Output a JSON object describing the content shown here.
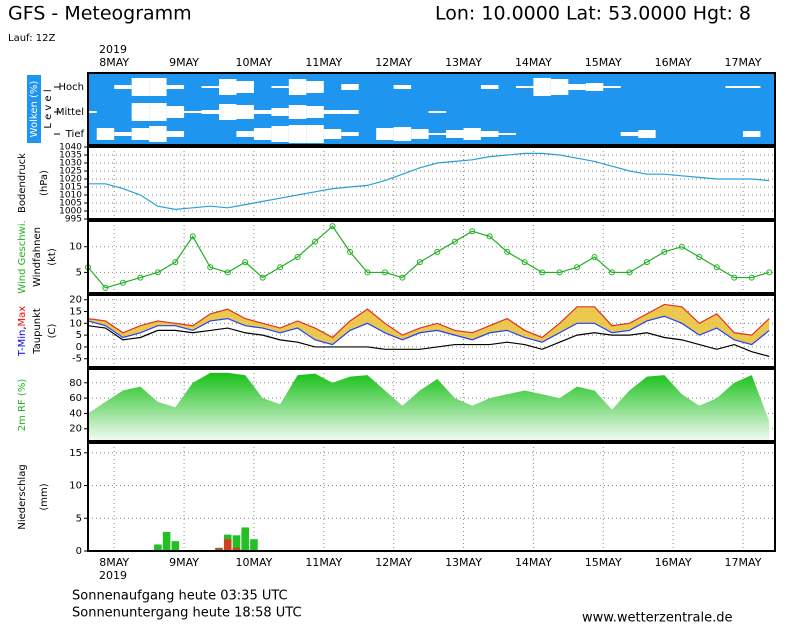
{
  "header": {
    "title": "GFS - Meteogramm",
    "location": "Lon: 10.0000 Lat: 53.0000 Hgt: 8",
    "run": "Lauf: 12Z"
  },
  "time": {
    "year": "2019",
    "xlim": [
      0,
      236
    ],
    "xticks": [
      {
        "value": 9,
        "label": "8MAY"
      },
      {
        "value": 33,
        "label": "9MAY"
      },
      {
        "value": 57,
        "label": "10MAY"
      },
      {
        "value": 81,
        "label": "11MAY"
      },
      {
        "value": 105,
        "label": "12MAY"
      },
      {
        "value": 129,
        "label": "13MAY"
      },
      {
        "value": 153,
        "label": "14MAY"
      },
      {
        "value": 177,
        "label": "15MAY"
      },
      {
        "value": 201,
        "label": "16MAY"
      },
      {
        "value": 225,
        "label": "17MAY"
      }
    ],
    "x": [
      0,
      6,
      12,
      18,
      24,
      30,
      36,
      42,
      48,
      54,
      60,
      66,
      72,
      78,
      84,
      90,
      96,
      102,
      108,
      114,
      120,
      126,
      132,
      138,
      144,
      150,
      156,
      162,
      168,
      174,
      180,
      186,
      192,
      198,
      204,
      210,
      216,
      222,
      228,
      234
    ]
  },
  "chart_data": [
    {
      "type": "cloud",
      "ylabel": [
        [
          {
            "text": "Wolken (%)",
            "color": "#ffffff"
          }
        ],
        [
          {
            "text": "L e v e l",
            "color": "#000000"
          }
        ]
      ],
      "background": "#1e96f0",
      "series": [
        {
          "name": "Hoch",
          "color": "#ffffff",
          "values": [
            0,
            0,
            20,
            90,
            90,
            20,
            0,
            10,
            80,
            60,
            0,
            10,
            80,
            60,
            0,
            30,
            0,
            0,
            20,
            0,
            0,
            0,
            0,
            20,
            0,
            10,
            90,
            80,
            30,
            40,
            10,
            0,
            0,
            0,
            0,
            0,
            0,
            10,
            10,
            0
          ]
        },
        {
          "name": "Mittel",
          "color": "#ffffff",
          "values": [
            10,
            0,
            0,
            90,
            90,
            60,
            10,
            20,
            80,
            70,
            20,
            40,
            70,
            60,
            20,
            20,
            0,
            0,
            0,
            0,
            10,
            0,
            0,
            0,
            0,
            0,
            0,
            0,
            0,
            0,
            0,
            0,
            0,
            0,
            0,
            0,
            0,
            0,
            0,
            0
          ]
        },
        {
          "name": "Tief",
          "color": "#ffffff",
          "values": [
            0,
            60,
            20,
            60,
            80,
            30,
            0,
            0,
            0,
            30,
            60,
            80,
            90,
            90,
            50,
            20,
            0,
            60,
            70,
            50,
            10,
            40,
            60,
            30,
            10,
            0,
            0,
            0,
            0,
            0,
            0,
            20,
            40,
            0,
            0,
            0,
            0,
            0,
            30,
            0
          ]
        }
      ]
    },
    {
      "type": "line",
      "ylabel": [
        [
          {
            "text": "Bodendruck",
            "color": "#000000"
          }
        ],
        [
          {
            "text": "(hPa)",
            "color": "#000000"
          }
        ]
      ],
      "ylim": [
        995,
        1040
      ],
      "yticks": [
        995,
        1000,
        1005,
        1010,
        1015,
        1020,
        1025,
        1030,
        1035,
        1040
      ],
      "series": [
        {
          "color": "#2a9fd6",
          "values": [
            1017,
            1017,
            1014,
            1010,
            1003,
            1001,
            1002,
            1003,
            1002,
            1004,
            1006,
            1008,
            1010,
            1012,
            1014,
            1015,
            1016,
            1019,
            1023,
            1027,
            1030,
            1031,
            1032,
            1034,
            1035,
            1036,
            1036,
            1035,
            1033,
            1031,
            1028,
            1025,
            1023,
            1023,
            1022,
            1021,
            1020,
            1020,
            1020,
            1019
          ]
        }
      ]
    },
    {
      "type": "line",
      "markers": true,
      "ylabel": [
        [
          {
            "text": "Wind Geschwi.",
            "color": "#22b022"
          }
        ],
        [
          {
            "text": "Windfahnen",
            "color": "#000000"
          }
        ],
        [
          {
            "text": "(kt)",
            "color": "#000000"
          }
        ]
      ],
      "ylim": [
        1,
        15
      ],
      "yticks": [
        5,
        10
      ],
      "series": [
        {
          "color": "#22b022",
          "values": [
            6,
            2,
            3,
            4,
            5,
            7,
            12,
            6,
            5,
            7,
            4,
            6,
            8,
            11,
            14,
            9,
            5,
            5,
            4,
            7,
            9,
            11,
            13,
            12,
            9,
            7,
            5,
            5,
            6,
            8,
            5,
            5,
            7,
            9,
            10,
            8,
            6,
            4,
            4,
            5
          ]
        }
      ]
    },
    {
      "type": "band",
      "ylabel": [
        [
          {
            "text": "T-Min",
            "color": "#0000ff"
          },
          {
            "text": ",",
            "color": "#000000"
          },
          {
            "text": "Max",
            "color": "#ff0000"
          }
        ],
        [
          {
            "text": "Taupunkt",
            "color": "#000000"
          }
        ],
        [
          {
            "text": "(C)",
            "color": "#000000"
          }
        ]
      ],
      "ylim": [
        -8.5,
        22
      ],
      "yticks": [
        -5,
        0,
        5,
        10,
        15,
        20
      ],
      "fill": "#e8c030",
      "series": [
        {
          "color": "#2040ff",
          "values": [
            11,
            9,
            4,
            6,
            9,
            9,
            7,
            11,
            12,
            9,
            8,
            6,
            8,
            3,
            1,
            7,
            10,
            6,
            3,
            6,
            7,
            5,
            3,
            6,
            7,
            4,
            2,
            6,
            10,
            10,
            6,
            7,
            11,
            13,
            10,
            5,
            8,
            3,
            1,
            7
          ]
        },
        {
          "color": "#e03020",
          "values": [
            12,
            11,
            6,
            9,
            11,
            10,
            9,
            14,
            16,
            12,
            10,
            8,
            11,
            8,
            4,
            11,
            16,
            10,
            5,
            8,
            10,
            7,
            6,
            9,
            12,
            7,
            4,
            10,
            17,
            17,
            9,
            10,
            14,
            18,
            17,
            10,
            14,
            6,
            5,
            12
          ]
        },
        {
          "color": "#000000",
          "values": [
            9,
            8,
            3,
            4,
            7,
            7,
            6,
            7,
            8,
            6,
            5,
            3,
            2,
            0,
            0,
            0,
            0,
            -1,
            -1,
            -1,
            0,
            1,
            1,
            1,
            2,
            1,
            -1,
            2,
            5,
            6,
            5,
            5,
            6,
            4,
            3,
            1,
            -1,
            1,
            -2,
            -4
          ]
        }
      ]
    },
    {
      "type": "area",
      "ylabel": [
        [
          {
            "text": "2m RF (%)",
            "color": "#22b022"
          }
        ]
      ],
      "ylim": [
        4,
        98
      ],
      "yticks": [
        20,
        40,
        60,
        80
      ],
      "series": [
        {
          "color": "#18c018",
          "values": [
            40,
            55,
            70,
            75,
            55,
            48,
            80,
            93,
            93,
            90,
            60,
            52,
            90,
            92,
            80,
            88,
            90,
            70,
            50,
            70,
            85,
            60,
            50,
            60,
            65,
            70,
            65,
            60,
            75,
            70,
            45,
            70,
            88,
            90,
            65,
            50,
            60,
            80,
            90,
            30
          ]
        }
      ]
    },
    {
      "type": "bar",
      "ylabel": [
        [
          {
            "text": "Niederschlag",
            "color": "#000000"
          }
        ],
        [
          {
            "text": "(mm)",
            "color": "#000000"
          }
        ]
      ],
      "ylim": [
        0,
        16.5
      ],
      "yticks": [
        0,
        5,
        10,
        15
      ],
      "x": [
        24,
        27,
        30,
        45,
        48,
        51,
        54,
        57
      ],
      "series": [
        {
          "color": "#22c022",
          "values": [
            1.0,
            2.9,
            1.5,
            0.5,
            2.5,
            2.4,
            3.6,
            1.8
          ]
        },
        {
          "color": "#d04020",
          "values": [
            0,
            0,
            0,
            0.4,
            1.8,
            0.5,
            0,
            0
          ]
        }
      ]
    }
  ],
  "footer": {
    "sunrise": "Sonnenaufgang heute 03:35 UTC",
    "sunset": "Sonnenuntergang heute 18:58 UTC",
    "site": "www.wetterzentrale.de"
  }
}
